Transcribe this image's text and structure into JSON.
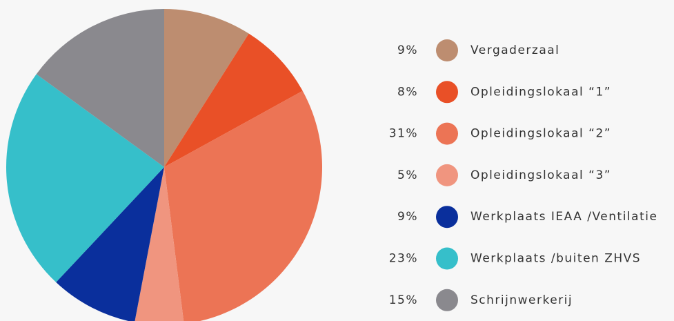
{
  "chart_data": {
    "type": "pie",
    "categories": [
      "Vergaderzaal",
      "Opleidingslokaal “1”",
      "Opleidingslokaal “2”",
      "Opleidingslokaal “3”",
      "Werkplaats IEAA /Ventilatie",
      "Werkplaats /buiten ZHVS",
      "Schrijnwerkerij"
    ],
    "values": [
      9,
      8,
      31,
      5,
      9,
      23,
      15
    ],
    "value_labels": [
      "9%",
      "8%",
      "31%",
      "5%",
      "9%",
      "23%",
      "15%"
    ],
    "colors": [
      "#bd8d70",
      "#e95027",
      "#ec7455",
      "#f0957f",
      "#0a2f9c",
      "#36bfca",
      "#8a898e"
    ]
  }
}
